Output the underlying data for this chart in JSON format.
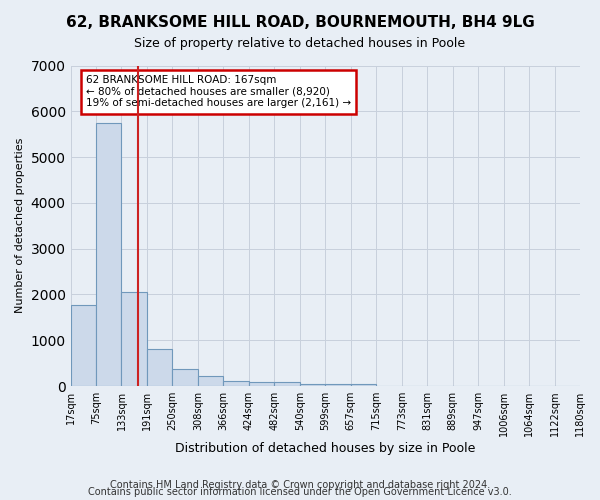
{
  "title": "62, BRANKSOME HILL ROAD, BOURNEMOUTH, BH4 9LG",
  "subtitle": "Size of property relative to detached houses in Poole",
  "xlabel": "Distribution of detached houses by size in Poole",
  "ylabel": "Number of detached properties",
  "footer1": "Contains HM Land Registry data © Crown copyright and database right 2024.",
  "footer2": "Contains public sector information licensed under the Open Government Licence v3.0.",
  "bar_values": [
    1780,
    5750,
    2050,
    820,
    370,
    230,
    110,
    90,
    90,
    55,
    55,
    55,
    5,
    5,
    5,
    5,
    5,
    5,
    5,
    5
  ],
  "bar_color": "#ccd9ea",
  "bar_edge_color": "#7098bb",
  "vline_position": 2.65,
  "vline_color": "#cc2222",
  "annotation_text": "62 BRANKSOME HILL ROAD: 167sqm\n← 80% of detached houses are smaller (8,920)\n19% of semi-detached houses are larger (2,161) →",
  "annotation_box_color": "#ffffff",
  "annotation_edge_color": "#cc0000",
  "ylim": [
    0,
    7000
  ],
  "yticks": [
    0,
    1000,
    2000,
    3000,
    4000,
    5000,
    6000,
    7000
  ],
  "grid_color": "#c8d0dc",
  "bg_color": "#e8eef5",
  "tick_labels": [
    "17sqm",
    "75sqm",
    "133sqm",
    "191sqm",
    "250sqm",
    "308sqm",
    "366sqm",
    "424sqm",
    "482sqm",
    "540sqm",
    "599sqm",
    "657sqm",
    "715sqm",
    "773sqm",
    "831sqm",
    "889sqm",
    "947sqm",
    "1006sqm",
    "1064sqm",
    "1122sqm",
    "1180sqm"
  ],
  "title_fontsize": 11,
  "subtitle_fontsize": 9,
  "ylabel_fontsize": 8,
  "xlabel_fontsize": 9,
  "tick_fontsize": 7,
  "annotation_fontsize": 7.5,
  "footer_fontsize": 7
}
